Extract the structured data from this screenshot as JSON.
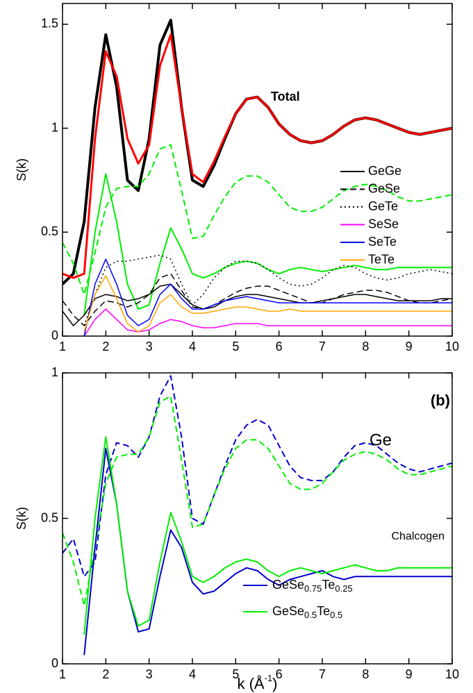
{
  "chart_data": [
    {
      "type": "line",
      "ylabel": "S(k)",
      "annotations": [
        "Total"
      ],
      "legend": "right",
      "x": [
        1,
        1.25,
        1.5,
        1.75,
        2,
        2.25,
        2.5,
        2.75,
        3,
        3.25,
        3.5,
        3.75,
        4,
        4.25,
        4.5,
        4.75,
        5,
        5.25,
        5.5,
        5.75,
        6,
        6.25,
        6.5,
        6.75,
        7,
        7.25,
        7.5,
        7.75,
        8,
        8.25,
        8.5,
        8.75,
        9,
        9.25,
        9.5,
        9.75,
        10
      ],
      "xlim": [
        1,
        10
      ],
      "xticks": [
        1,
        2,
        3,
        4,
        5,
        6,
        7,
        8,
        9,
        10
      ],
      "ylim": [
        0,
        1.6
      ],
      "yticks": [
        0,
        0.5,
        1,
        1.5
      ],
      "series": [
        {
          "color": "#000000",
          "dash": "solid",
          "width": 4,
          "values": [
            0.25,
            0.3,
            0.55,
            1.1,
            1.45,
            1.2,
            0.75,
            0.7,
            0.95,
            1.4,
            1.52,
            1.1,
            0.75,
            0.72,
            0.82,
            0.95,
            1.07,
            1.14,
            1.15,
            1.1,
            1.02,
            0.97,
            0.94,
            0.93,
            0.94,
            0.97,
            1.01,
            1.04,
            1.05,
            1.04,
            1.02,
            1.0,
            0.98,
            0.97,
            0.98,
            0.99,
            1.0
          ]
        },
        {
          "color": "#ff0000",
          "dash": "solid",
          "width": 3,
          "values": [
            0.3,
            0.28,
            0.3,
            0.95,
            1.37,
            1.25,
            0.95,
            0.83,
            0.92,
            1.3,
            1.45,
            1.1,
            0.78,
            0.74,
            0.84,
            0.96,
            1.07,
            1.14,
            1.15,
            1.1,
            1.02,
            0.97,
            0.94,
            0.93,
            0.94,
            0.97,
            1.01,
            1.04,
            1.05,
            1.04,
            1.02,
            1.0,
            0.98,
            0.97,
            0.98,
            0.99,
            1.0
          ]
        },
        {
          "color": "#00ee00",
          "dash": "dashed",
          "width": 2,
          "values": [
            0.45,
            0.35,
            0.2,
            0.4,
            0.62,
            0.71,
            0.72,
            0.72,
            0.78,
            0.9,
            0.92,
            0.7,
            0.47,
            0.48,
            0.58,
            0.67,
            0.74,
            0.77,
            0.77,
            0.74,
            0.68,
            0.62,
            0.6,
            0.6,
            0.62,
            0.66,
            0.7,
            0.72,
            0.73,
            0.72,
            0.7,
            0.67,
            0.65,
            0.65,
            0.66,
            0.67,
            0.68
          ]
        },
        {
          "color": "#00ee00",
          "dash": "solid",
          "width": 2,
          "values": [
            null,
            null,
            0.1,
            0.5,
            0.78,
            0.55,
            0.25,
            0.13,
            0.15,
            0.35,
            0.52,
            0.42,
            0.3,
            0.28,
            0.3,
            0.33,
            0.35,
            0.36,
            0.35,
            0.32,
            0.3,
            0.32,
            0.33,
            0.32,
            0.31,
            0.32,
            0.33,
            0.34,
            0.33,
            0.32,
            0.32,
            0.33,
            0.33,
            0.33,
            0.33,
            0.33,
            0.33
          ]
        },
        {
          "name": "GeGe",
          "color": "#000000",
          "dash": "solid",
          "width": 1.5,
          "values": [
            0.12,
            0.05,
            0.1,
            0.18,
            0.2,
            0.19,
            0.17,
            0.18,
            0.2,
            0.24,
            0.25,
            0.2,
            0.15,
            0.13,
            0.14,
            0.17,
            0.19,
            0.2,
            0.2,
            0.19,
            0.18,
            0.17,
            0.16,
            0.16,
            0.17,
            0.18,
            0.19,
            0.2,
            0.2,
            0.19,
            0.18,
            0.17,
            0.17,
            0.17,
            0.17,
            0.18,
            0.18
          ]
        },
        {
          "name": "GeSe",
          "color": "#000000",
          "dash": "dashed",
          "width": 1.5,
          "values": [
            0.17,
            0.1,
            0.05,
            0.12,
            0.17,
            0.16,
            0.14,
            0.16,
            0.2,
            0.28,
            0.3,
            0.22,
            0.14,
            0.13,
            0.15,
            0.18,
            0.21,
            0.23,
            0.24,
            0.24,
            0.22,
            0.2,
            0.18,
            0.16,
            0.16,
            0.18,
            0.2,
            0.21,
            0.22,
            0.22,
            0.21,
            0.19,
            0.17,
            0.16,
            0.16,
            0.17,
            0.18
          ]
        },
        {
          "name": "GeTe",
          "color": "#000000",
          "dash": "dotted",
          "width": 1.5,
          "values": [
            null,
            null,
            0.05,
            0.2,
            0.33,
            0.36,
            0.36,
            0.37,
            0.38,
            0.39,
            0.37,
            0.25,
            0.15,
            0.2,
            0.28,
            0.33,
            0.36,
            0.36,
            0.35,
            0.32,
            0.28,
            0.25,
            0.24,
            0.25,
            0.28,
            0.32,
            0.34,
            0.33,
            0.3,
            0.28,
            0.27,
            0.28,
            0.3,
            0.31,
            0.32,
            0.31,
            0.3
          ]
        },
        {
          "name": "SeSe",
          "color": "#ff00ff",
          "dash": "solid",
          "width": 1.5,
          "values": [
            null,
            null,
            0.0,
            0.08,
            0.13,
            0.08,
            0.03,
            0.02,
            0.03,
            0.06,
            0.08,
            0.07,
            0.05,
            0.04,
            0.04,
            0.05,
            0.06,
            0.06,
            0.06,
            0.05,
            0.05,
            0.05,
            0.05,
            0.05,
            0.05,
            0.05,
            0.05,
            0.05,
            0.05,
            0.05,
            0.05,
            0.05,
            0.05,
            0.05,
            0.05,
            0.05,
            0.05
          ]
        },
        {
          "name": "SeTe",
          "color": "#0000ff",
          "dash": "solid",
          "width": 1.5,
          "values": [
            null,
            null,
            0.0,
            0.25,
            0.37,
            0.25,
            0.1,
            0.05,
            0.08,
            0.2,
            0.25,
            0.18,
            0.13,
            0.13,
            0.15,
            0.17,
            0.18,
            0.19,
            0.18,
            0.17,
            0.16,
            0.16,
            0.16,
            0.16,
            0.16,
            0.16,
            0.16,
            0.16,
            0.16,
            0.16,
            0.16,
            0.16,
            0.16,
            0.16,
            0.16,
            0.16,
            0.16
          ]
        },
        {
          "name": "TeTe",
          "color": "#ffa500",
          "dash": "solid",
          "width": 1.5,
          "values": [
            null,
            null,
            0.02,
            0.2,
            0.29,
            0.18,
            0.06,
            0.02,
            0.05,
            0.16,
            0.2,
            0.14,
            0.11,
            0.11,
            0.12,
            0.13,
            0.14,
            0.14,
            0.13,
            0.12,
            0.12,
            0.13,
            0.12,
            0.12,
            0.12,
            0.12,
            0.12,
            0.12,
            0.12,
            0.12,
            0.12,
            0.12,
            0.12,
            0.12,
            0.12,
            0.12,
            0.12
          ]
        }
      ]
    },
    {
      "type": "line",
      "ylabel": "S(k)",
      "xlabel": [
        "k (Å",
        "-1",
        ")"
      ],
      "annotations": [
        "(b)",
        "Ge",
        "Chalcogen"
      ],
      "legend": "bottom",
      "x": [
        1,
        1.25,
        1.5,
        1.75,
        2,
        2.25,
        2.5,
        2.75,
        3,
        3.25,
        3.5,
        3.75,
        4,
        4.25,
        4.5,
        4.75,
        5,
        5.25,
        5.5,
        5.75,
        6,
        6.25,
        6.5,
        6.75,
        7,
        7.25,
        7.5,
        7.75,
        8,
        8.25,
        8.5,
        8.75,
        9,
        9.25,
        9.5,
        9.75,
        10
      ],
      "xlim": [
        1,
        10
      ],
      "xticks": [
        1,
        2,
        3,
        4,
        5,
        6,
        7,
        8,
        9,
        10
      ],
      "ylim": [
        0,
        1
      ],
      "yticks": [
        0,
        0.5,
        1
      ],
      "series": [
        {
          "color": "#0000cc",
          "dash": "dashed",
          "width": 2,
          "values": [
            0.38,
            0.43,
            0.3,
            0.35,
            0.65,
            0.76,
            0.75,
            0.71,
            0.78,
            0.92,
            0.99,
            0.78,
            0.5,
            0.48,
            0.58,
            0.68,
            0.77,
            0.82,
            0.84,
            0.82,
            0.75,
            0.68,
            0.64,
            0.63,
            0.63,
            0.66,
            0.71,
            0.75,
            0.76,
            0.75,
            0.72,
            0.69,
            0.67,
            0.66,
            0.67,
            0.68,
            0.69
          ]
        },
        {
          "color": "#00ee00",
          "dash": "dashed",
          "width": 2,
          "values": [
            0.45,
            0.35,
            0.2,
            0.4,
            0.62,
            0.71,
            0.72,
            0.72,
            0.78,
            0.9,
            0.92,
            0.7,
            0.47,
            0.48,
            0.58,
            0.67,
            0.74,
            0.77,
            0.77,
            0.74,
            0.68,
            0.62,
            0.6,
            0.6,
            0.62,
            0.66,
            0.7,
            0.72,
            0.73,
            0.72,
            0.7,
            0.67,
            0.65,
            0.65,
            0.66,
            0.67,
            0.68
          ]
        },
        {
          "name": [
            "GeSe",
            "0.75",
            "Te",
            "0.25"
          ],
          "color": "#0000cc",
          "dash": "solid",
          "width": 2,
          "values": [
            null,
            null,
            0.03,
            0.4,
            0.74,
            0.55,
            0.25,
            0.11,
            0.12,
            0.3,
            0.46,
            0.4,
            0.28,
            0.24,
            0.25,
            0.28,
            0.31,
            0.33,
            0.32,
            0.29,
            0.27,
            0.29,
            0.3,
            0.31,
            0.32,
            0.3,
            0.29,
            0.3,
            0.3,
            0.3,
            0.3,
            0.3,
            0.3,
            0.3,
            0.3,
            0.3,
            0.3
          ]
        },
        {
          "name": [
            "GeSe",
            "0.5",
            "Te",
            "0.5"
          ],
          "color": "#00ee00",
          "dash": "solid",
          "width": 2,
          "values": [
            null,
            null,
            0.1,
            0.5,
            0.78,
            0.55,
            0.25,
            0.13,
            0.15,
            0.35,
            0.52,
            0.42,
            0.3,
            0.28,
            0.3,
            0.33,
            0.35,
            0.36,
            0.35,
            0.32,
            0.3,
            0.32,
            0.33,
            0.32,
            0.31,
            0.32,
            0.33,
            0.34,
            0.33,
            0.32,
            0.32,
            0.33,
            0.33,
            0.33,
            0.33,
            0.33,
            0.33
          ]
        }
      ]
    }
  ]
}
